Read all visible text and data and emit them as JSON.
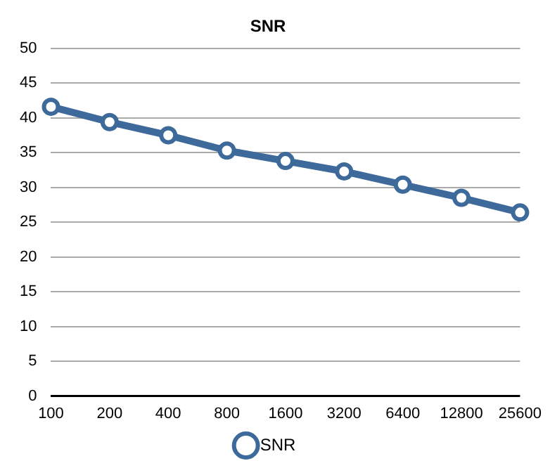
{
  "chart_data": {
    "type": "line",
    "title": "SNR",
    "categories": [
      "100",
      "200",
      "400",
      "800",
      "1600",
      "3200",
      "6400",
      "12800",
      "25600"
    ],
    "series": [
      {
        "name": "SNR",
        "color": "#3d6a9a",
        "values": [
          41.6,
          39.4,
          37.5,
          35.3,
          33.8,
          32.3,
          30.4,
          28.5,
          26.4
        ]
      }
    ],
    "ylim": [
      0,
      50
    ],
    "yticks": [
      0,
      5,
      10,
      15,
      20,
      25,
      30,
      35,
      40,
      45,
      50
    ],
    "grid": "y",
    "legend": "bottom",
    "marker": "circle"
  }
}
